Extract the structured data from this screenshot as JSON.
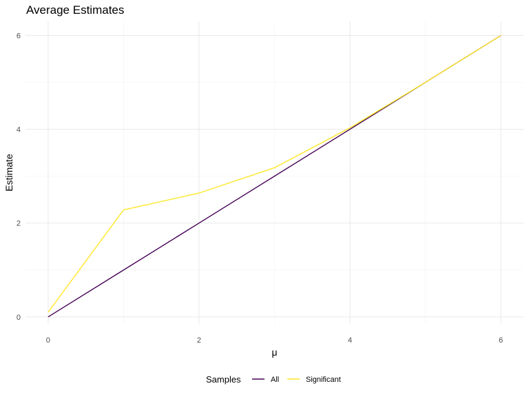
{
  "chart_data": {
    "type": "line",
    "title": "Average Estimates",
    "xlabel": "μ",
    "ylabel": "Estimate",
    "xlim": [
      -0.3,
      6.3
    ],
    "ylim": [
      -0.15,
      6.3
    ],
    "x_ticks": [
      0,
      2,
      4,
      6
    ],
    "y_ticks": [
      0,
      2,
      4,
      6
    ],
    "x_minor": [
      1,
      3,
      5
    ],
    "y_minor": [
      1,
      3,
      5
    ],
    "grid": true,
    "legend": {
      "title": "Samples",
      "position": "bottom"
    },
    "series": [
      {
        "name": "All",
        "color": "#440154",
        "x": [
          0,
          1,
          2,
          3,
          4,
          5,
          6
        ],
        "y": [
          0.0,
          1.0,
          2.0,
          3.0,
          4.0,
          5.0,
          6.0
        ]
      },
      {
        "name": "Significant",
        "color": "#fde725",
        "x": [
          0,
          1,
          2,
          3,
          4,
          5,
          6
        ],
        "y": [
          0.1,
          2.28,
          2.64,
          3.18,
          4.03,
          5.0,
          6.0
        ]
      }
    ]
  }
}
